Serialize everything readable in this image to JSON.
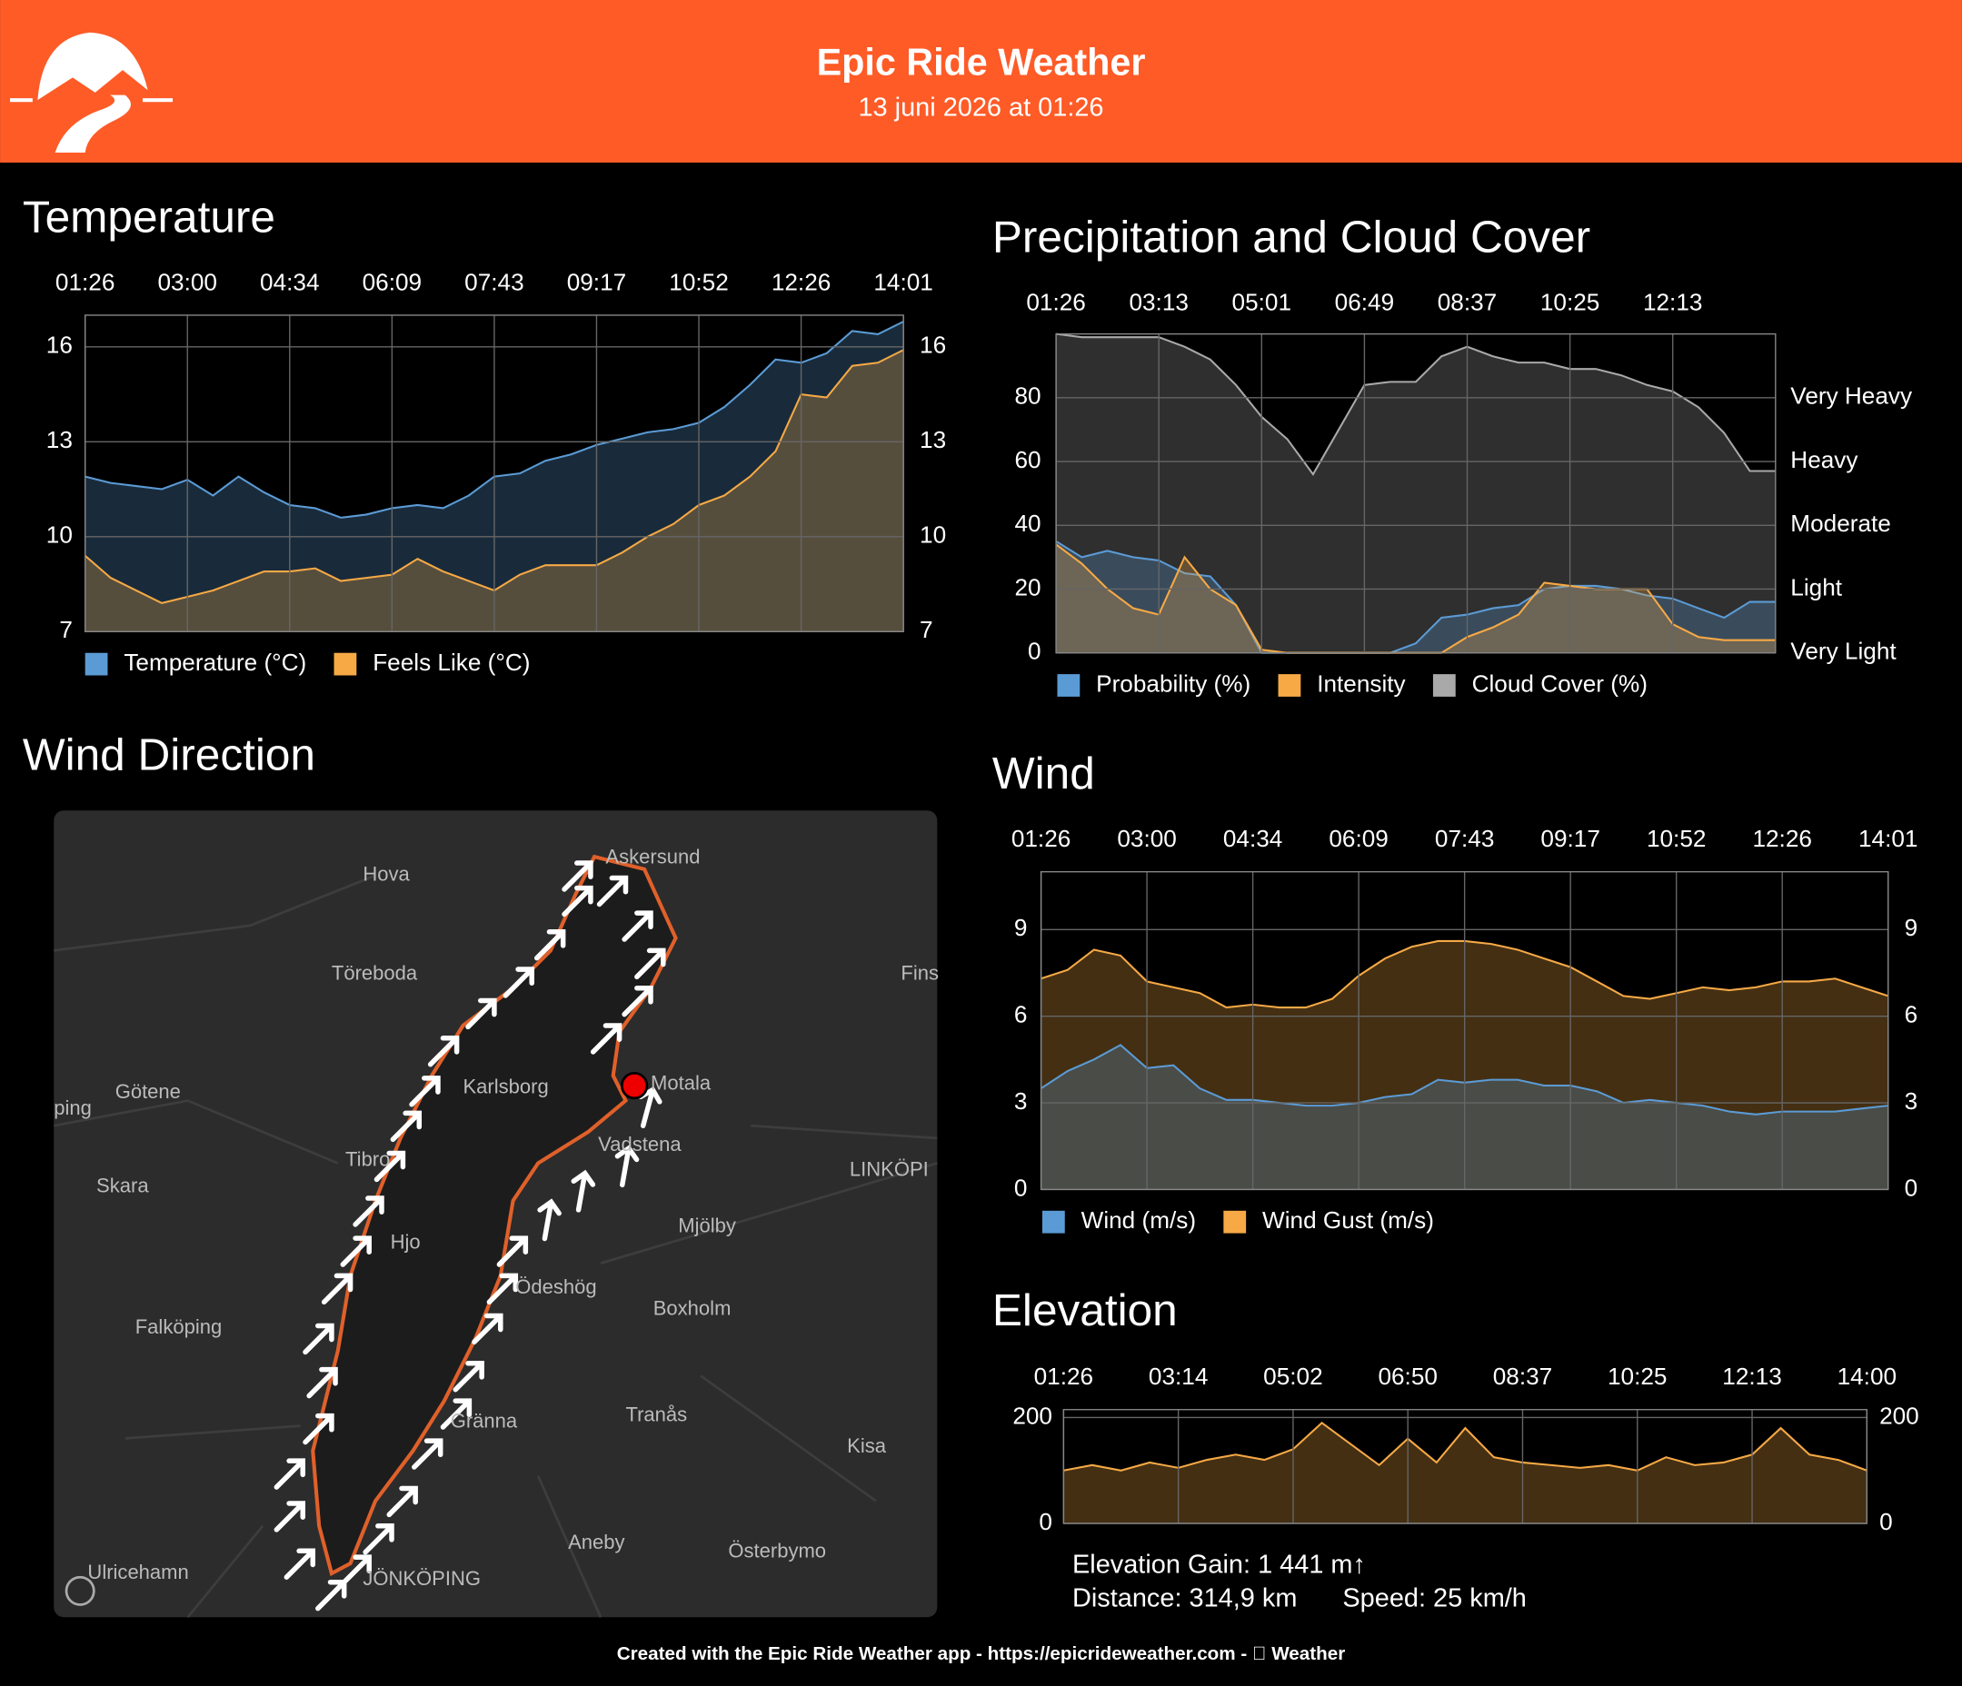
{
  "header": {
    "title": "Epic Ride Weather",
    "subtitle": "13 juni 2026 at 01:26"
  },
  "chart_data": [
    {
      "type": "area",
      "title": "Temperature",
      "categories": [
        "01:26",
        null,
        null,
        null,
        "03:00",
        null,
        null,
        null,
        "04:34",
        null,
        null,
        null,
        "06:09",
        null,
        null,
        null,
        "07:43",
        null,
        null,
        null,
        "09:17",
        null,
        null,
        null,
        "10:52",
        null,
        null,
        null,
        "12:26",
        null,
        null,
        null,
        "14:01"
      ],
      "series": [
        {
          "name": "Temperature (°C)",
          "color": "#5b9bd5",
          "values": [
            11.9,
            11.7,
            11.6,
            11.5,
            11.8,
            11.3,
            11.9,
            11.4,
            11.0,
            10.9,
            10.6,
            10.7,
            10.9,
            11.0,
            10.9,
            11.3,
            11.9,
            12.0,
            12.4,
            12.6,
            12.9,
            13.1,
            13.3,
            13.4,
            13.6,
            14.1,
            14.8,
            15.6,
            15.5,
            15.8,
            16.5,
            16.4,
            16.8
          ]
        },
        {
          "name": "Feels Like (°C)",
          "color": "#f6a945",
          "values": [
            9.4,
            8.7,
            8.3,
            7.9,
            8.1,
            8.3,
            8.6,
            8.9,
            8.9,
            9.0,
            8.6,
            8.7,
            8.8,
            9.3,
            8.9,
            8.6,
            8.3,
            8.8,
            9.1,
            9.1,
            9.1,
            9.5,
            10.0,
            10.4,
            11.0,
            11.3,
            11.9,
            12.7,
            14.5,
            14.4,
            15.4,
            15.5,
            15.9
          ]
        }
      ],
      "ylim": [
        7,
        17
      ],
      "yticks": [
        7,
        10,
        13,
        16
      ],
      "y2lim": [
        7,
        17
      ],
      "y2ticks": [
        7,
        10,
        13,
        16
      ],
      "grid": true
    },
    {
      "type": "area",
      "title": "Precipitation and Cloud Cover",
      "categories": [
        "01:26",
        null,
        null,
        null,
        "03:13",
        null,
        null,
        null,
        "05:01",
        null,
        null,
        null,
        "06:49",
        null,
        null,
        null,
        "08:37",
        null,
        null,
        null,
        "10:25",
        null,
        null,
        null,
        "12:13",
        null,
        null,
        null,
        null
      ],
      "series": [
        {
          "name": "Probability (%)",
          "color": "#5b9bd5",
          "values": [
            35,
            30,
            32,
            30,
            29,
            25,
            24,
            15,
            0,
            0,
            0,
            0,
            0,
            0,
            3,
            11,
            12,
            14,
            15,
            20,
            21,
            21,
            20,
            18,
            17,
            14,
            11,
            16,
            16
          ]
        },
        {
          "name": "Intensity",
          "color": "#f6a945",
          "values": [
            34,
            28,
            20,
            14,
            12,
            30,
            20,
            15,
            1,
            0,
            0,
            0,
            0,
            0,
            0,
            0,
            5,
            8,
            12,
            22,
            21,
            20,
            20,
            20,
            9,
            5,
            4,
            4,
            4
          ]
        },
        {
          "name": "Cloud Cover (%)",
          "color": "#a9a9a9",
          "values": [
            100,
            99,
            99,
            99,
            99,
            96,
            92,
            84,
            74,
            67,
            56,
            70,
            84,
            85,
            85,
            93,
            96,
            93,
            91,
            91,
            89,
            89,
            87,
            84,
            82,
            77,
            69,
            57,
            57
          ]
        }
      ],
      "ylim": [
        0,
        100
      ],
      "yticks": [
        0,
        20,
        40,
        60,
        80
      ],
      "y2lim": [
        0,
        100
      ],
      "y2ticks": [
        {
          "value": 0,
          "label": "Very Light"
        },
        {
          "value": 20,
          "label": "Light"
        },
        {
          "value": 40,
          "label": "Moderate"
        },
        {
          "value": 60,
          "label": "Heavy"
        },
        {
          "value": 80,
          "label": "Very Heavy"
        }
      ],
      "grid": true
    },
    {
      "type": "area",
      "title": "Wind",
      "categories": [
        "01:26",
        null,
        null,
        null,
        "03:00",
        null,
        null,
        null,
        "04:34",
        null,
        null,
        null,
        "06:09",
        null,
        null,
        null,
        "07:43",
        null,
        null,
        null,
        "09:17",
        null,
        null,
        null,
        "10:52",
        null,
        null,
        null,
        "12:26",
        null,
        null,
        null,
        "14:01"
      ],
      "series": [
        {
          "name": "Wind (m/s)",
          "color": "#5b9bd5",
          "values": [
            3.5,
            4.1,
            4.5,
            5.0,
            4.2,
            4.3,
            3.5,
            3.1,
            3.1,
            3.0,
            2.9,
            2.9,
            3.0,
            3.2,
            3.3,
            3.8,
            3.7,
            3.8,
            3.8,
            3.6,
            3.6,
            3.4,
            3.0,
            3.1,
            3.0,
            2.9,
            2.7,
            2.6,
            2.7,
            2.7,
            2.7,
            2.8,
            2.9
          ]
        },
        {
          "name": "Wind Gust (m/s)",
          "color": "#f6a945",
          "values": [
            7.3,
            7.6,
            8.3,
            8.1,
            7.2,
            7.0,
            6.8,
            6.3,
            6.4,
            6.3,
            6.3,
            6.6,
            7.4,
            8.0,
            8.4,
            8.6,
            8.6,
            8.5,
            8.3,
            8.0,
            7.7,
            7.2,
            6.7,
            6.6,
            6.8,
            7.0,
            6.9,
            7.0,
            7.2,
            7.2,
            7.3,
            7.0,
            6.7
          ]
        }
      ],
      "ylim": [
        0,
        11
      ],
      "yticks": [
        0,
        3,
        6,
        9
      ],
      "y2lim": [
        0,
        11
      ],
      "y2ticks": [
        0,
        3,
        6,
        9
      ],
      "grid": true
    },
    {
      "type": "area",
      "title": "Elevation",
      "categories": [
        "01:26",
        null,
        null,
        null,
        "03:14",
        null,
        null,
        null,
        "05:02",
        null,
        null,
        null,
        "06:50",
        null,
        null,
        null,
        "08:37",
        null,
        null,
        null,
        "10:25",
        null,
        null,
        null,
        "12:13",
        null,
        null,
        null,
        "14:00"
      ],
      "series": [
        {
          "color": "#f6a945",
          "values": [
            100,
            110,
            100,
            115,
            105,
            120,
            130,
            120,
            140,
            190,
            150,
            110,
            160,
            115,
            180,
            125,
            115,
            110,
            105,
            110,
            100,
            125,
            110,
            115,
            130,
            180,
            130,
            120,
            100
          ]
        }
      ],
      "ylim": [
        0,
        215
      ],
      "yticks": [
        0,
        200
      ],
      "y2lim": [
        0,
        215
      ],
      "y2ticks": [
        0,
        200
      ],
      "grid": true,
      "annotations": [
        "Elevation Gain: 1 441 m↑",
        "Distance: 314,9 km",
        "Speed: 25 km/h"
      ]
    }
  ],
  "wind_map": {
    "title": "Wind Direction",
    "places": [
      "Askersund",
      "Hova",
      "Töreboda",
      "Fins",
      "Götene",
      "ping",
      "Karlsborg",
      "Motala",
      "Vadstena",
      "Tibro",
      "LINKÖPI",
      "Skara",
      "Mjölby",
      "Hjo",
      "Ödeshög",
      "Boxholm",
      "Falköping",
      "Gränna",
      "Tranås",
      "Kisa",
      "Aneby",
      "Österbymo",
      "Ulricehamn",
      "JÖNKÖPING"
    ]
  },
  "footer": "Created with the Epic Ride Weather app - https://epicrideweather.com -  Weather"
}
